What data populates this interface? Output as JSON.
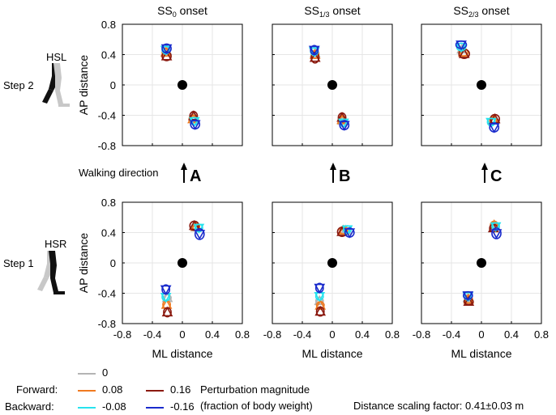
{
  "chart_data": {
    "type": "scatter",
    "xlabel": "ML distance",
    "ylabel": "AP distance",
    "xlim": [
      -0.8,
      0.8
    ],
    "ylim": [
      -0.8,
      0.8
    ],
    "xticks": [
      "-0.8",
      "-0.4",
      "0",
      "0.4",
      "0.8"
    ],
    "yticks": [
      "0.8",
      "0.4",
      "0",
      "-0.4",
      "-0.8"
    ],
    "columns": [
      {
        "title": "SS",
        "sub": "0",
        "suffix": " onset",
        "panel_letter": "A"
      },
      {
        "title": "SS",
        "sub": "1/3",
        "suffix": " onset",
        "panel_letter": "B"
      },
      {
        "title": "SS",
        "sub": "2/3",
        "suffix": " onset",
        "panel_letter": "C"
      }
    ],
    "rows": [
      {
        "step": "Step 2",
        "foot": "HSL"
      },
      {
        "step": "Step 1",
        "foot": "HSR"
      }
    ],
    "walking_direction": "Walking direction",
    "series_colors": {
      "0": "#b4b4b4",
      "0.08": "#f07a20",
      "0.16": "#8b1a10",
      "-0.08": "#27e3ee",
      "-0.16": "#1a2bcc"
    },
    "panels": [
      {
        "row": 0,
        "col": 0,
        "points": [
          {
            "name": "0",
            "x": -0.21,
            "y": 0.45,
            "dx": 0.05,
            "dy": 0.04
          },
          {
            "name": "0.08",
            "x": -0.22,
            "y": 0.43,
            "dx": 0.05,
            "dy": 0.05
          },
          {
            "name": "0.16",
            "x": -0.21,
            "y": 0.38,
            "dx": 0.06,
            "dy": 0.06
          },
          {
            "name": "-0.08",
            "x": -0.22,
            "y": 0.46,
            "dx": 0.05,
            "dy": 0.05
          },
          {
            "name": "-0.16",
            "x": -0.21,
            "y": 0.48,
            "dx": 0.06,
            "dy": 0.06
          },
          {
            "name": "0",
            "x": 0.15,
            "y": -0.44,
            "dx": 0.05,
            "dy": 0.04
          },
          {
            "name": "0.08",
            "x": 0.14,
            "y": -0.45,
            "dx": 0.05,
            "dy": 0.05
          },
          {
            "name": "0.16",
            "x": 0.15,
            "y": -0.41,
            "dx": 0.05,
            "dy": 0.06
          },
          {
            "name": "-0.08",
            "x": 0.16,
            "y": -0.48,
            "dx": 0.05,
            "dy": 0.05
          },
          {
            "name": "-0.16",
            "x": 0.17,
            "y": -0.52,
            "dx": 0.06,
            "dy": 0.06
          }
        ]
      },
      {
        "row": 0,
        "col": 1,
        "points": [
          {
            "name": "0",
            "x": -0.23,
            "y": 0.42,
            "dx": 0.05,
            "dy": 0.04
          },
          {
            "name": "0.08",
            "x": -0.23,
            "y": 0.4,
            "dx": 0.05,
            "dy": 0.05
          },
          {
            "name": "0.16",
            "x": -0.23,
            "y": 0.36,
            "dx": 0.05,
            "dy": 0.07
          },
          {
            "name": "-0.08",
            "x": -0.24,
            "y": 0.44,
            "dx": 0.05,
            "dy": 0.05
          },
          {
            "name": "-0.16",
            "x": -0.24,
            "y": 0.46,
            "dx": 0.05,
            "dy": 0.06
          },
          {
            "name": "0",
            "x": 0.14,
            "y": -0.47,
            "dx": 0.05,
            "dy": 0.04
          },
          {
            "name": "0.08",
            "x": 0.13,
            "y": -0.46,
            "dx": 0.05,
            "dy": 0.05
          },
          {
            "name": "0.16",
            "x": 0.13,
            "y": -0.43,
            "dx": 0.05,
            "dy": 0.06
          },
          {
            "name": "-0.08",
            "x": 0.15,
            "y": -0.5,
            "dx": 0.05,
            "dy": 0.05
          },
          {
            "name": "-0.16",
            "x": 0.16,
            "y": -0.53,
            "dx": 0.06,
            "dy": 0.06
          }
        ]
      },
      {
        "row": 0,
        "col": 2,
        "points": [
          {
            "name": "0",
            "x": -0.26,
            "y": 0.47,
            "dx": 0.05,
            "dy": 0.04
          },
          {
            "name": "0.08",
            "x": -0.24,
            "y": 0.43,
            "dx": 0.06,
            "dy": 0.05
          },
          {
            "name": "0.16",
            "x": -0.23,
            "y": 0.41,
            "dx": 0.07,
            "dy": 0.06
          },
          {
            "name": "-0.08",
            "x": -0.27,
            "y": 0.5,
            "dx": 0.06,
            "dy": 0.05
          },
          {
            "name": "-0.16",
            "x": -0.27,
            "y": 0.53,
            "dx": 0.07,
            "dy": 0.05
          },
          {
            "name": "0",
            "x": 0.16,
            "y": -0.46,
            "dx": 0.05,
            "dy": 0.04
          },
          {
            "name": "0.08",
            "x": 0.16,
            "y": -0.46,
            "dx": 0.05,
            "dy": 0.05
          },
          {
            "name": "0.16",
            "x": 0.18,
            "y": -0.45,
            "dx": 0.06,
            "dy": 0.06
          },
          {
            "name": "-0.08",
            "x": 0.13,
            "y": -0.49,
            "dx": 0.05,
            "dy": 0.05
          },
          {
            "name": "-0.16",
            "x": 0.17,
            "y": -0.56,
            "dx": 0.06,
            "dy": 0.06
          }
        ]
      },
      {
        "row": 1,
        "col": 0,
        "points": [
          {
            "name": "0",
            "x": 0.18,
            "y": 0.47,
            "dx": 0.05,
            "dy": 0.04
          },
          {
            "name": "0.08",
            "x": 0.18,
            "y": 0.48,
            "dx": 0.05,
            "dy": 0.05
          },
          {
            "name": "0.16",
            "x": 0.16,
            "y": 0.49,
            "dx": 0.06,
            "dy": 0.06
          },
          {
            "name": "-0.08",
            "x": 0.22,
            "y": 0.46,
            "dx": 0.05,
            "dy": 0.05
          },
          {
            "name": "-0.16",
            "x": 0.23,
            "y": 0.38,
            "dx": 0.06,
            "dy": 0.07
          },
          {
            "name": "0",
            "x": -0.2,
            "y": -0.46,
            "dx": 0.05,
            "dy": 0.04
          },
          {
            "name": "0.08",
            "x": -0.21,
            "y": -0.55,
            "dx": 0.05,
            "dy": 0.05
          },
          {
            "name": "0.16",
            "x": -0.2,
            "y": -0.65,
            "dx": 0.05,
            "dy": 0.06
          },
          {
            "name": "-0.08",
            "x": -0.22,
            "y": -0.45,
            "dx": 0.05,
            "dy": 0.05
          },
          {
            "name": "-0.16",
            "x": -0.22,
            "y": -0.35,
            "dx": 0.05,
            "dy": 0.06
          }
        ]
      },
      {
        "row": 1,
        "col": 1,
        "points": [
          {
            "name": "0",
            "x": 0.18,
            "y": 0.43,
            "dx": 0.05,
            "dy": 0.04
          },
          {
            "name": "0.08",
            "x": 0.15,
            "y": 0.43,
            "dx": 0.05,
            "dy": 0.05
          },
          {
            "name": "0.16",
            "x": 0.13,
            "y": 0.41,
            "dx": 0.06,
            "dy": 0.06
          },
          {
            "name": "-0.08",
            "x": 0.2,
            "y": 0.44,
            "dx": 0.05,
            "dy": 0.05
          },
          {
            "name": "-0.16",
            "x": 0.23,
            "y": 0.4,
            "dx": 0.06,
            "dy": 0.06
          },
          {
            "name": "0",
            "x": -0.17,
            "y": -0.5,
            "dx": 0.05,
            "dy": 0.04
          },
          {
            "name": "0.08",
            "x": -0.16,
            "y": -0.56,
            "dx": 0.05,
            "dy": 0.05
          },
          {
            "name": "0.16",
            "x": -0.16,
            "y": -0.64,
            "dx": 0.05,
            "dy": 0.06
          },
          {
            "name": "-0.08",
            "x": -0.17,
            "y": -0.44,
            "dx": 0.05,
            "dy": 0.05
          },
          {
            "name": "-0.16",
            "x": -0.17,
            "y": -0.33,
            "dx": 0.05,
            "dy": 0.06
          }
        ]
      },
      {
        "row": 1,
        "col": 2,
        "points": [
          {
            "name": "0",
            "x": 0.17,
            "y": 0.49,
            "dx": 0.05,
            "dy": 0.04
          },
          {
            "name": "0.08",
            "x": 0.17,
            "y": 0.5,
            "dx": 0.05,
            "dy": 0.05
          },
          {
            "name": "0.16",
            "x": 0.16,
            "y": 0.46,
            "dx": 0.05,
            "dy": 0.05
          },
          {
            "name": "-0.08",
            "x": 0.19,
            "y": 0.48,
            "dx": 0.05,
            "dy": 0.05
          },
          {
            "name": "-0.16",
            "x": 0.2,
            "y": 0.39,
            "dx": 0.06,
            "dy": 0.07
          },
          {
            "name": "0",
            "x": -0.18,
            "y": -0.46,
            "dx": 0.05,
            "dy": 0.04
          },
          {
            "name": "0.08",
            "x": -0.17,
            "y": -0.48,
            "dx": 0.05,
            "dy": 0.05
          },
          {
            "name": "0.16",
            "x": -0.17,
            "y": -0.51,
            "dx": 0.06,
            "dy": 0.04
          },
          {
            "name": "-0.08",
            "x": -0.18,
            "y": -0.44,
            "dx": 0.05,
            "dy": 0.05
          },
          {
            "name": "-0.16",
            "x": -0.18,
            "y": -0.43,
            "dx": 0.06,
            "dy": 0.05
          }
        ]
      }
    ],
    "legend": {
      "forward_label": "Forward:",
      "backward_label": "Backward:",
      "entries": [
        {
          "name": "0",
          "label": "0"
        },
        {
          "name": "0.08",
          "label": "0.08"
        },
        {
          "name": "0.16",
          "label": "0.16"
        },
        {
          "name": "-0.08",
          "label": "-0.08"
        },
        {
          "name": "-0.16",
          "label": "-0.16"
        }
      ],
      "magnitude_line1": "Perturbation magnitude",
      "magnitude_line2": "(fraction of body weight)",
      "scaling": "Distance scaling factor: 0.41±0.03 m"
    }
  }
}
